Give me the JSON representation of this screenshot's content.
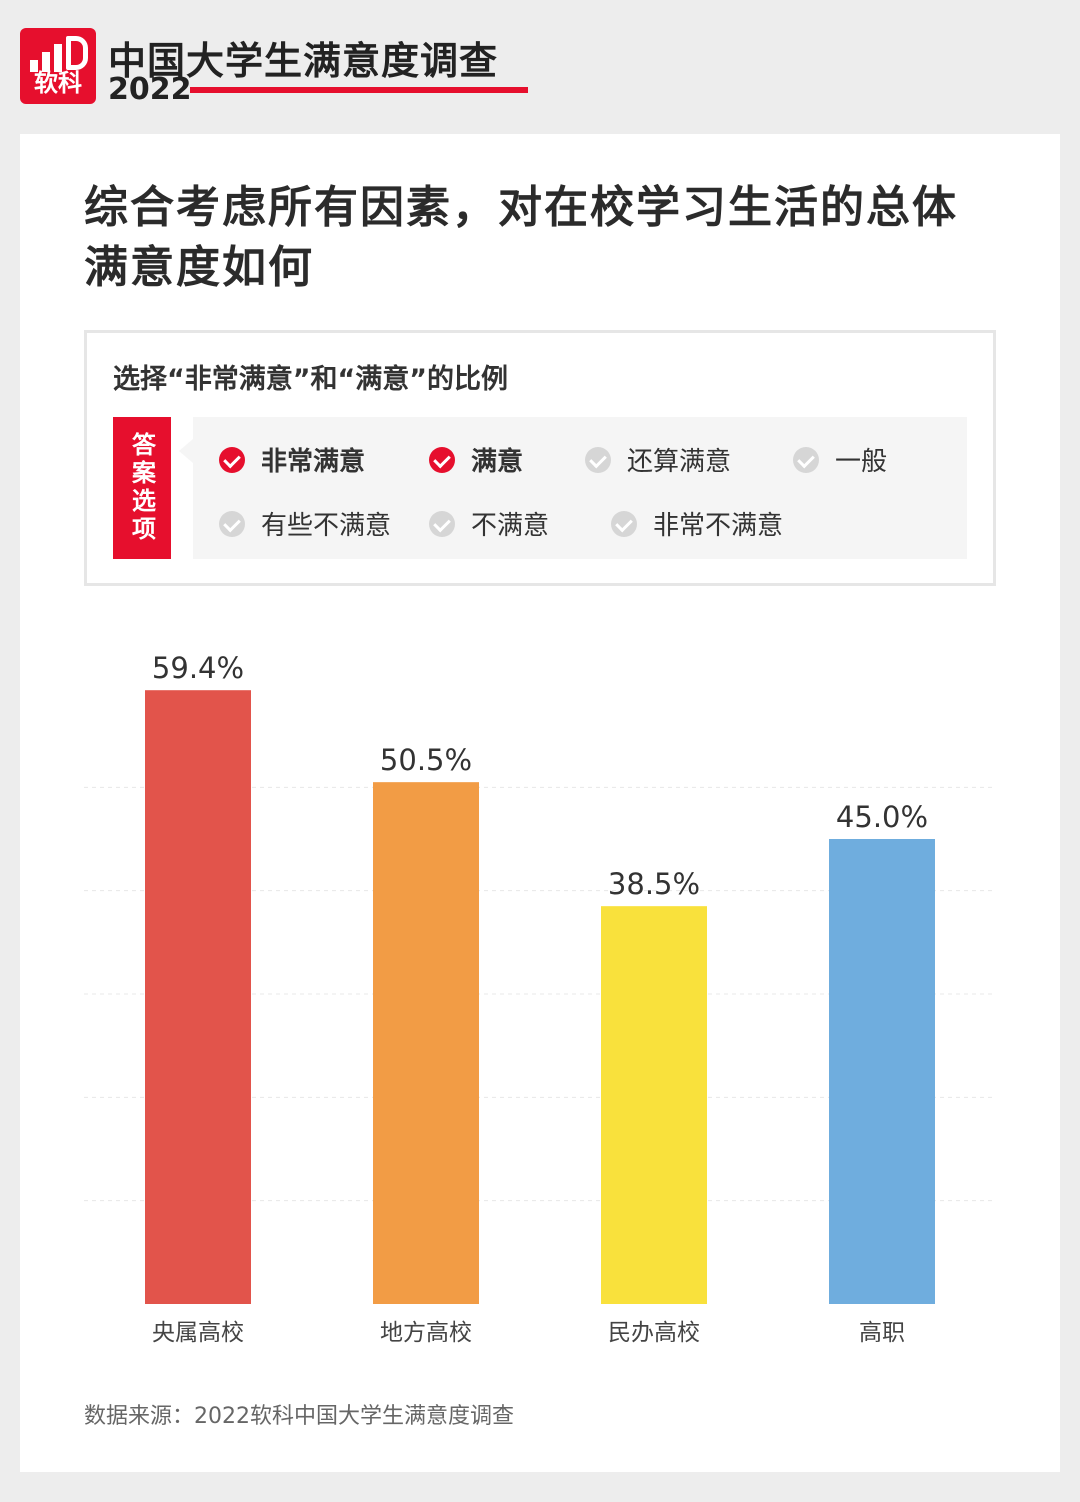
{
  "header": {
    "logo_text": "软科",
    "title": "中国大学生满意度调查",
    "year": "2022"
  },
  "question": "综合考虑所有因素，对在校学习生活的总体满意度如何",
  "options": {
    "heading": "选择“非常满意”和“满意”的比例",
    "tag": "答案选项",
    "items": [
      {
        "label": "非常满意",
        "selected": true
      },
      {
        "label": "满意",
        "selected": true
      },
      {
        "label": "还算满意",
        "selected": false
      },
      {
        "label": "一般",
        "selected": false
      },
      {
        "label": "有些不满意",
        "selected": false
      },
      {
        "label": "不满意",
        "selected": false
      },
      {
        "label": "非常不满意",
        "selected": false
      }
    ]
  },
  "chart_data": {
    "type": "bar",
    "categories": [
      "央属高校",
      "地方高校",
      "民办高校",
      "高职"
    ],
    "values": [
      59.4,
      50.5,
      38.5,
      45.0
    ],
    "value_labels": [
      "59.4%",
      "50.5%",
      "38.5%",
      "45.0%"
    ],
    "colors": [
      "#e2544b",
      "#f29c45",
      "#f9e13c",
      "#6fadde"
    ],
    "ylim": [
      0,
      60
    ],
    "grid": true
  },
  "source": "数据来源：2022软科中国大学生满意度调查",
  "colors": {
    "brand": "#e60f2d"
  }
}
